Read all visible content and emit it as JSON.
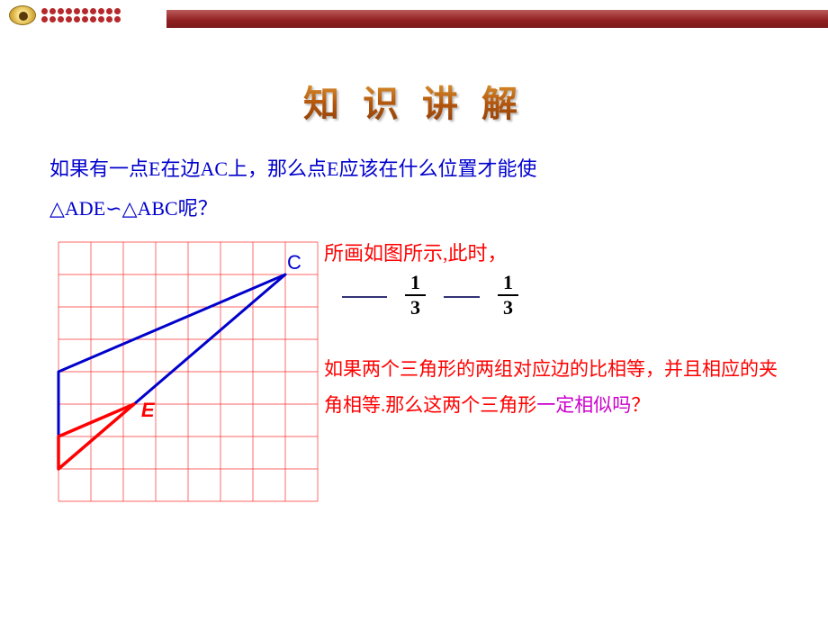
{
  "header": {
    "dot_color": "#b5282b",
    "bar_gradient": [
      "#bc5a5a",
      "#8e1f20",
      "#7c191a"
    ]
  },
  "title": "知 识 讲 解",
  "question_line1": "如果有一点E在边AC上，那么点E应该在什么位置才能使",
  "question_line2": "△ADE∽△ABC呢？",
  "result_text": "所画如图所示,此时，",
  "fractions": {
    "f1_num": "1",
    "f1_den": "3",
    "f2_num": "1",
    "f2_den": "3"
  },
  "hypothesis_part1": "如果两个三角形的两组对应边的比相等，并且相应的夹角相等.那么这两个三角形",
  "hypothesis_highlight": "一定相似吗",
  "hypothesis_part2": "？",
  "diagram": {
    "grid_color": "#ff3030",
    "grid_stroke": 0.7,
    "cell_size": 36,
    "cols": 8,
    "rows": 8,
    "triangle_ABC_color": "#0000cc",
    "triangle_ABC_stroke": 3,
    "triangle_ADE_color": "#ff0000",
    "triangle_ADE_stroke": 3.5,
    "points": {
      "A": {
        "gx": 1,
        "gy": 8,
        "label_dx": -20,
        "label_dy": 22,
        "color": "#0000cc"
      },
      "B": {
        "gx": 1,
        "gy": 5,
        "label_dx": -22,
        "label_dy": 8,
        "color": "#0000cc"
      },
      "C": {
        "gx": 8,
        "gy": 2,
        "label_dx": 2,
        "label_dy": -6,
        "color": "#0000cc"
      },
      "D": {
        "gx": 1,
        "gy": 7,
        "label_dx": -24,
        "label_dy": 8,
        "color": "#0000cc"
      },
      "E": {
        "gx": 3.33,
        "gy": 6,
        "label_dx": 8,
        "label_dy": 14,
        "color": "#ff0000"
      }
    },
    "label_font_size": 22
  }
}
